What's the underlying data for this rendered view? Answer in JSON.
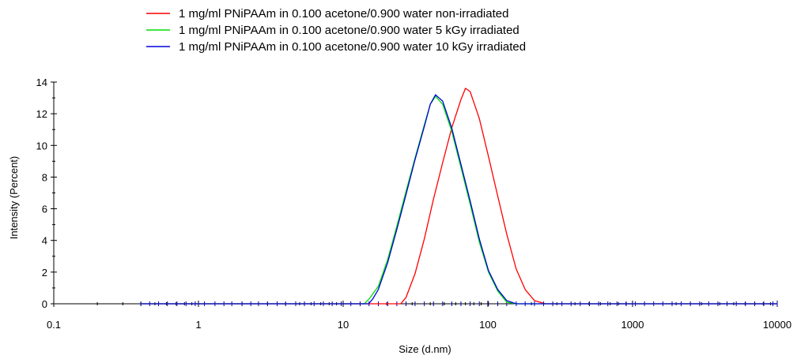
{
  "chart_data": {
    "type": "line",
    "title": "",
    "xlabel": "Size (d.nm)",
    "ylabel": "Intensity (Percent)",
    "x_scale": "log",
    "xlim": [
      0.1,
      10000
    ],
    "ylim": [
      0,
      14
    ],
    "x_ticks": [
      {
        "value": 0.1,
        "label": "0.1"
      },
      {
        "value": 1,
        "label": "1"
      },
      {
        "value": 10,
        "label": "10"
      },
      {
        "value": 100,
        "label": "100"
      },
      {
        "value": 1000,
        "label": "1000"
      },
      {
        "value": 10000,
        "label": "10000"
      }
    ],
    "y_ticks": [
      {
        "value": 0,
        "label": "0"
      },
      {
        "value": 2,
        "label": "2"
      },
      {
        "value": 4,
        "label": "4"
      },
      {
        "value": 6,
        "label": "6"
      },
      {
        "value": 8,
        "label": "8"
      },
      {
        "value": 10,
        "label": "10"
      },
      {
        "value": 12,
        "label": "12"
      },
      {
        "value": 14,
        "label": "14"
      }
    ],
    "grid": false,
    "legend_position": "top-center",
    "baseline_markers": [
      0.4,
      0.46,
      0.53,
      0.61,
      0.71,
      0.82,
      0.95,
      1.1,
      1.3,
      1.5,
      1.7,
      2.0,
      2.3,
      2.6,
      3.0,
      3.5,
      4.0,
      4.7,
      5.4,
      6.3,
      7.3,
      8.4,
      9.7,
      11.3,
      13.1,
      15.1,
      17.5,
      20.3,
      23.5,
      27.2,
      31.4,
      36.4,
      42.1,
      48.7,
      56.3,
      65.2,
      75.4,
      87.3,
      101,
      117,
      135,
      157,
      181,
      210,
      243,
      281,
      325,
      376,
      435,
      504,
      583,
      675,
      781,
      904,
      1046,
      1210,
      1400,
      1620,
      1876,
      2170,
      2510,
      2910,
      3360,
      3890,
      4500,
      5210,
      6030,
      6980,
      8070,
      9340,
      10000
    ],
    "series": [
      {
        "name": "1 mg/ml PNiPAAm in 0.100 acetone/0.900 water non-irradiated",
        "color": "#ff0000",
        "x": [
          0.4,
          20.0,
          25.0,
          27.2,
          31.4,
          36.4,
          42.1,
          48.7,
          56.3,
          65.2,
          70.0,
          75.4,
          87.3,
          101,
          117,
          135,
          157,
          181,
          210,
          250,
          10000
        ],
        "y": [
          0,
          0,
          0,
          0.4,
          1.9,
          4.1,
          6.6,
          8.9,
          11.1,
          12.9,
          13.6,
          13.4,
          11.7,
          9.3,
          6.8,
          4.4,
          2.2,
          0.9,
          0.2,
          0,
          0
        ]
      },
      {
        "name": "1 mg/ml PNiPAAm in 0.100 acetone/0.900 water 5 kGy irradiated",
        "color": "#00dd00",
        "x": [
          0.4,
          14.0,
          15.1,
          17.5,
          20.3,
          23.5,
          27.2,
          31.4,
          36.4,
          40.0,
          43.5,
          48.7,
          56.3,
          65.2,
          75.4,
          87.3,
          101,
          117,
          135,
          157,
          10000
        ],
        "y": [
          0,
          0,
          0.3,
          1.1,
          2.8,
          4.9,
          7.1,
          9.2,
          11.3,
          12.6,
          13.1,
          12.6,
          10.9,
          8.6,
          6.3,
          3.9,
          2.0,
          0.8,
          0.1,
          0,
          0
        ]
      },
      {
        "name": "1 mg/ml PNiPAAm in 0.100 acetone/0.900 water 10 kGy irradiated",
        "color": "#0000dd",
        "x": [
          0.4,
          15.0,
          16.0,
          17.5,
          20.3,
          23.5,
          27.2,
          31.4,
          36.4,
          40.0,
          43.5,
          48.7,
          56.3,
          65.2,
          75.4,
          87.3,
          101,
          117,
          135,
          157,
          10000
        ],
        "y": [
          0,
          0,
          0.3,
          0.9,
          2.6,
          4.7,
          6.9,
          9.1,
          11.2,
          12.6,
          13.2,
          12.8,
          11.1,
          8.8,
          6.5,
          4.1,
          2.1,
          0.9,
          0.2,
          0,
          0
        ]
      }
    ]
  }
}
